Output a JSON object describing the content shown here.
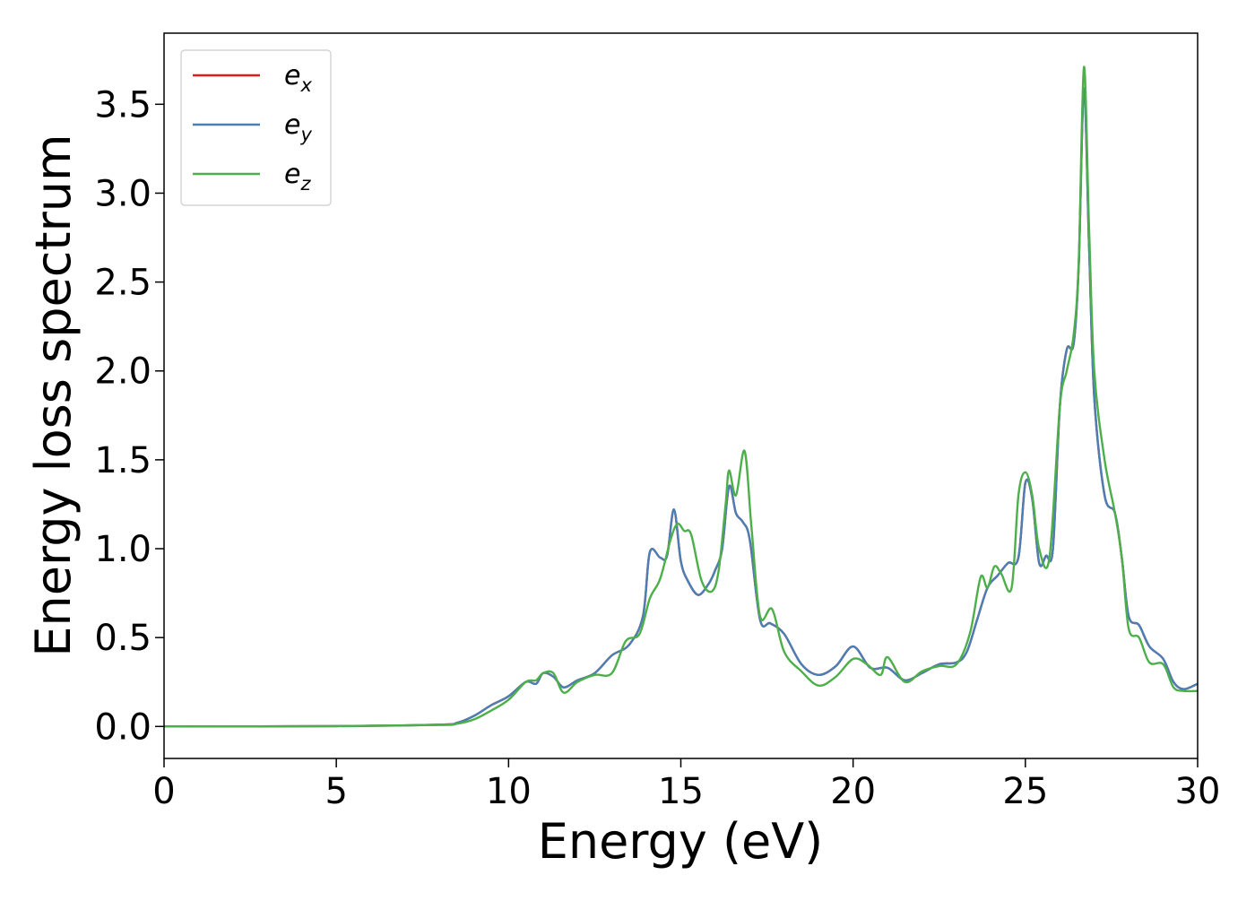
{
  "chart_data": {
    "type": "line",
    "xlabel": "Energy (eV)",
    "ylabel": "Energy loss spectrum",
    "xlim": [
      0,
      30
    ],
    "ylim": [
      -0.18,
      3.9
    ],
    "xticks": [
      "0",
      "5",
      "10",
      "15",
      "20",
      "25",
      "30"
    ],
    "yticks": [
      "0.0",
      "0.5",
      "1.0",
      "1.5",
      "2.0",
      "2.5",
      "3.0",
      "3.5"
    ],
    "grid": false,
    "legend_position": "top-left",
    "series": [
      {
        "name": "e",
        "subscript": "x",
        "color": "#e41a1c",
        "x": [
          0,
          5,
          8,
          8.5,
          9,
          9.5,
          10,
          10.5,
          10.8,
          11,
          11.3,
          11.6,
          12,
          12.5,
          13,
          13.5,
          13.9,
          14.1,
          14.4,
          14.6,
          14.8,
          15,
          15.2,
          15.5,
          15.8,
          16,
          16.2,
          16.4,
          16.6,
          16.8,
          17,
          17.3,
          17.6,
          18,
          18.5,
          19,
          19.5,
          20,
          20.5,
          21,
          21.5,
          22,
          22.5,
          23,
          23.3,
          23.6,
          23.9,
          24.2,
          24.5,
          24.8,
          25,
          25.2,
          25.4,
          25.6,
          25.8,
          26,
          26.2,
          26.4,
          26.55,
          26.7,
          26.85,
          27,
          27.3,
          27.6,
          27.8,
          28,
          28.3,
          28.6,
          29,
          29.3,
          29.6,
          30
        ],
        "y": [
          0,
          0.002,
          0.01,
          0.02,
          0.06,
          0.12,
          0.17,
          0.25,
          0.24,
          0.3,
          0.28,
          0.22,
          0.26,
          0.3,
          0.4,
          0.46,
          0.62,
          0.98,
          0.95,
          0.96,
          1.22,
          0.93,
          0.82,
          0.74,
          0.8,
          0.88,
          1.0,
          1.35,
          1.2,
          1.15,
          1.05,
          0.6,
          0.58,
          0.52,
          0.35,
          0.29,
          0.34,
          0.45,
          0.33,
          0.33,
          0.26,
          0.3,
          0.35,
          0.36,
          0.42,
          0.6,
          0.78,
          0.85,
          0.92,
          0.95,
          1.37,
          1.28,
          0.92,
          0.96,
          1.0,
          1.8,
          2.12,
          2.15,
          2.6,
          3.59,
          2.7,
          1.85,
          1.3,
          1.2,
          0.95,
          0.62,
          0.57,
          0.45,
          0.38,
          0.25,
          0.21,
          0.24
        ]
      },
      {
        "name": "e",
        "subscript": "y",
        "color": "#4a7fb5",
        "x": [
          0,
          5,
          8,
          8.5,
          9,
          9.5,
          10,
          10.5,
          10.8,
          11,
          11.3,
          11.6,
          12,
          12.5,
          13,
          13.5,
          13.9,
          14.1,
          14.4,
          14.6,
          14.8,
          15,
          15.2,
          15.5,
          15.8,
          16,
          16.2,
          16.4,
          16.6,
          16.8,
          17,
          17.3,
          17.6,
          18,
          18.5,
          19,
          19.5,
          20,
          20.5,
          21,
          21.5,
          22,
          22.5,
          23,
          23.3,
          23.6,
          23.9,
          24.2,
          24.5,
          24.8,
          25,
          25.2,
          25.4,
          25.6,
          25.8,
          26,
          26.2,
          26.4,
          26.55,
          26.7,
          26.85,
          27,
          27.3,
          27.6,
          27.8,
          28,
          28.3,
          28.6,
          29,
          29.3,
          29.6,
          30
        ],
        "y": [
          0,
          0.002,
          0.01,
          0.02,
          0.06,
          0.12,
          0.17,
          0.25,
          0.24,
          0.3,
          0.28,
          0.22,
          0.26,
          0.3,
          0.4,
          0.46,
          0.62,
          0.98,
          0.95,
          0.96,
          1.22,
          0.93,
          0.82,
          0.74,
          0.8,
          0.88,
          1.0,
          1.35,
          1.2,
          1.15,
          1.05,
          0.6,
          0.58,
          0.52,
          0.35,
          0.29,
          0.34,
          0.45,
          0.33,
          0.33,
          0.26,
          0.3,
          0.35,
          0.36,
          0.42,
          0.6,
          0.78,
          0.85,
          0.92,
          0.95,
          1.37,
          1.28,
          0.92,
          0.96,
          1.0,
          1.8,
          2.12,
          2.15,
          2.6,
          3.59,
          2.7,
          1.85,
          1.3,
          1.2,
          0.95,
          0.62,
          0.57,
          0.45,
          0.38,
          0.25,
          0.21,
          0.24
        ]
      },
      {
        "name": "e",
        "subscript": "z",
        "color": "#4daf4a",
        "x": [
          0,
          5,
          8,
          8.5,
          9,
          9.5,
          10,
          10.5,
          10.8,
          11,
          11.3,
          11.6,
          12,
          12.5,
          13,
          13.4,
          13.8,
          14.1,
          14.4,
          14.7,
          14.9,
          15.1,
          15.3,
          15.6,
          15.9,
          16.1,
          16.3,
          16.4,
          16.6,
          16.85,
          17.05,
          17.3,
          17.65,
          18,
          18.5,
          19,
          19.5,
          20,
          20.4,
          20.8,
          21,
          21.5,
          22,
          22.5,
          23,
          23.4,
          23.7,
          23.9,
          24.1,
          24.3,
          24.6,
          24.8,
          25,
          25.2,
          25.4,
          25.7,
          26,
          26.2,
          26.4,
          26.55,
          26.7,
          26.85,
          27,
          27.3,
          27.6,
          27.8,
          28,
          28.3,
          28.6,
          29,
          29.3,
          29.6,
          30
        ],
        "y": [
          0,
          0.002,
          0.008,
          0.015,
          0.04,
          0.09,
          0.15,
          0.25,
          0.26,
          0.3,
          0.3,
          0.19,
          0.25,
          0.29,
          0.3,
          0.48,
          0.52,
          0.72,
          0.83,
          1.05,
          1.14,
          1.1,
          1.08,
          0.82,
          0.76,
          0.88,
          1.25,
          1.44,
          1.3,
          1.55,
          1.12,
          0.62,
          0.66,
          0.42,
          0.31,
          0.23,
          0.28,
          0.38,
          0.35,
          0.29,
          0.39,
          0.25,
          0.31,
          0.34,
          0.35,
          0.53,
          0.84,
          0.78,
          0.9,
          0.86,
          0.78,
          1.3,
          1.43,
          1.3,
          1.0,
          0.95,
          1.8,
          2.0,
          2.2,
          2.62,
          3.71,
          2.8,
          2.0,
          1.5,
          1.2,
          0.95,
          0.55,
          0.5,
          0.36,
          0.35,
          0.22,
          0.2,
          0.2
        ]
      }
    ]
  }
}
